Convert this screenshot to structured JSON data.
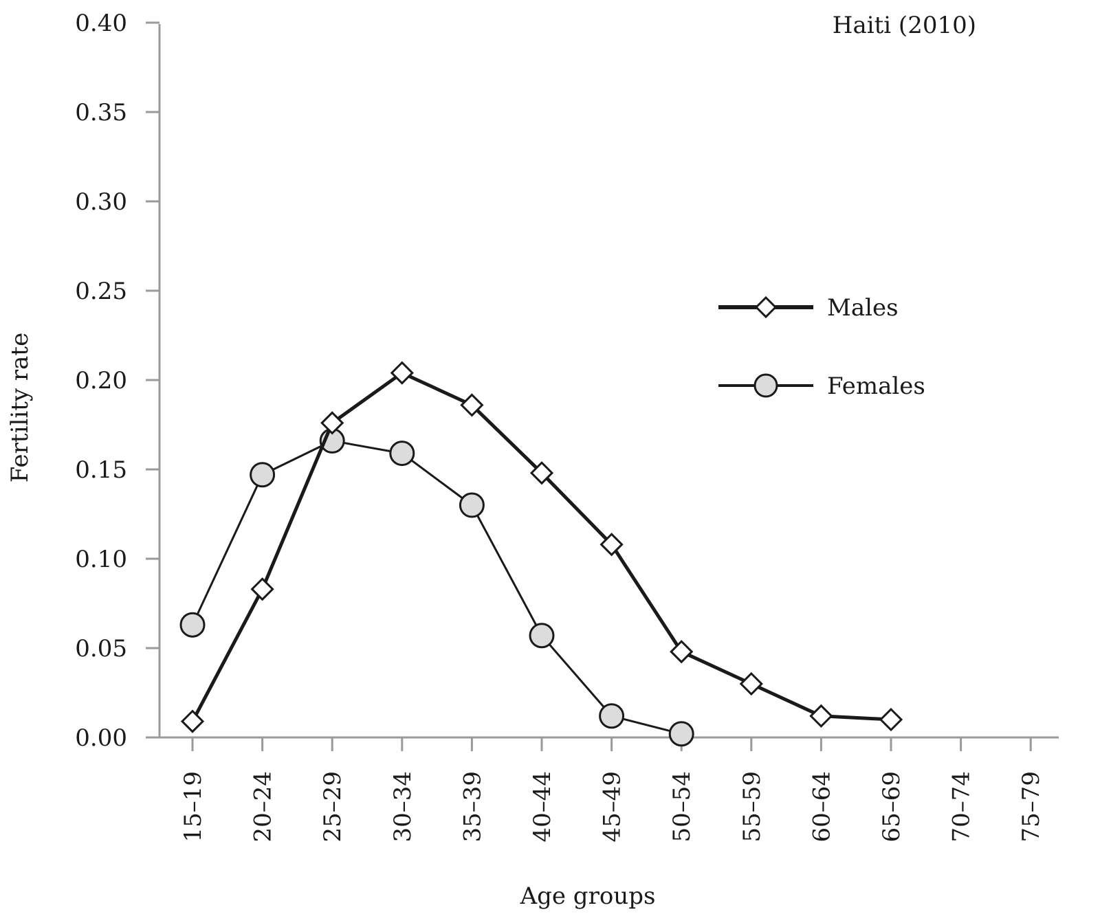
{
  "chart_data": {
    "type": "line",
    "annotation": "Haiti (2010)",
    "xlabel": "Age groups",
    "ylabel": "Fertility rate",
    "ylim": [
      0,
      0.4
    ],
    "yticks": [
      "0.00",
      "0.05",
      "0.10",
      "0.15",
      "0.20",
      "0.25",
      "0.30",
      "0.35",
      "0.40"
    ],
    "categories": [
      "15–19",
      "20–24",
      "25–29",
      "30–34",
      "35–39",
      "40–44",
      "45–49",
      "50–54",
      "55–59",
      "60–64",
      "65–69",
      "70–74",
      "75–79"
    ],
    "legend_position": "right-middle",
    "grid": false,
    "series": [
      {
        "name": "Males",
        "marker": "diamond",
        "values": [
          0.009,
          0.083,
          0.176,
          0.204,
          0.186,
          0.148,
          0.108,
          0.048,
          0.03,
          0.012,
          0.01,
          null,
          null
        ]
      },
      {
        "name": "Females",
        "marker": "circle",
        "values": [
          0.063,
          0.147,
          0.166,
          0.159,
          0.13,
          0.057,
          0.012,
          0.002,
          null,
          null,
          null,
          null,
          null
        ]
      }
    ],
    "colors": {
      "line": "#1a1a1a",
      "circle_fill": "#dcdcdc",
      "diamond_fill": "#ffffff",
      "axis": "#9a9a9a"
    }
  }
}
